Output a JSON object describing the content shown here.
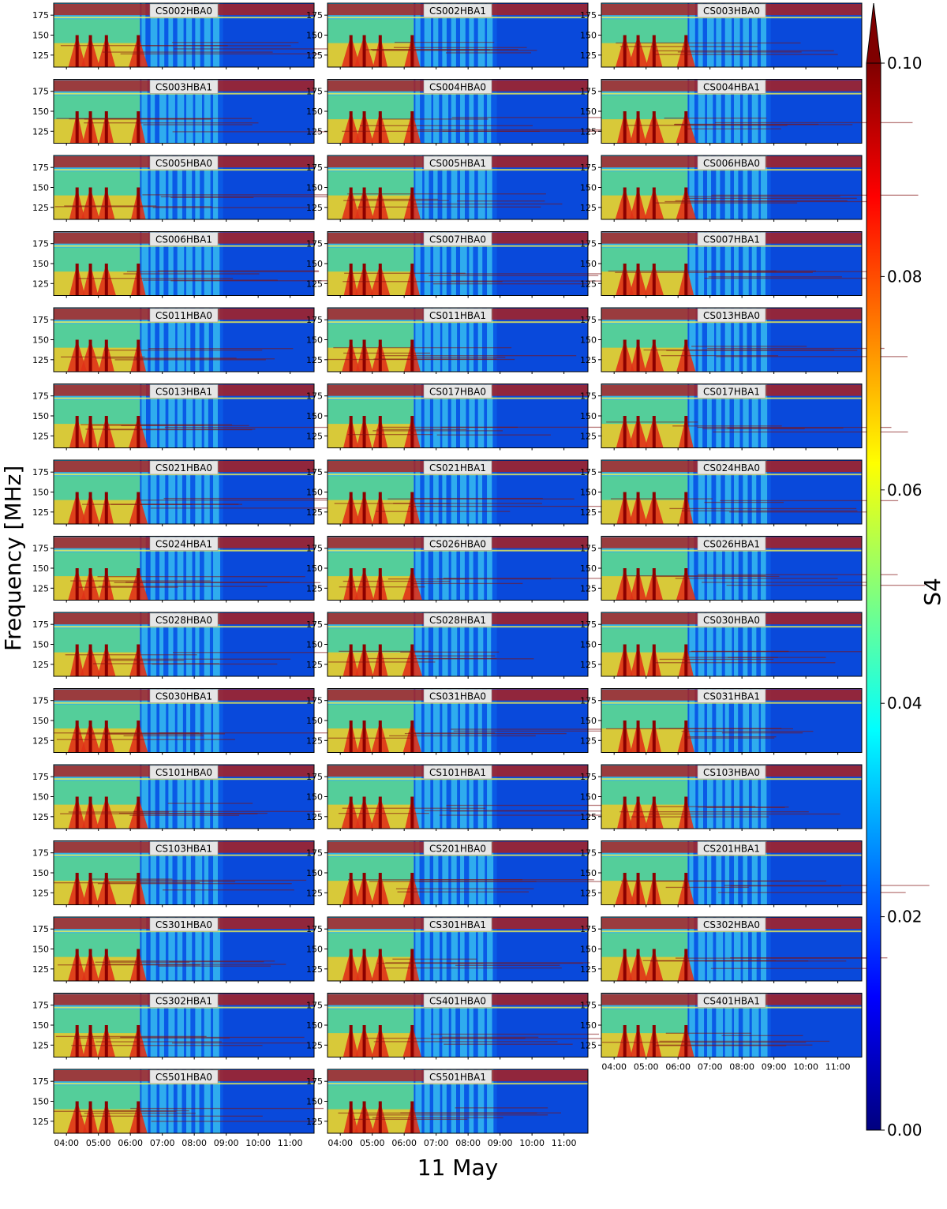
{
  "chart_data": {
    "type": "heatmap",
    "panel_layout": {
      "columns": 3,
      "rows": 15
    },
    "panels": [
      "CS002HBA0",
      "CS002HBA1",
      "CS003HBA0",
      "CS003HBA1",
      "CS004HBA0",
      "CS004HBA1",
      "CS005HBA0",
      "CS005HBA1",
      "CS006HBA0",
      "CS006HBA1",
      "CS007HBA0",
      "CS007HBA1",
      "CS011HBA0",
      "CS011HBA1",
      "CS013HBA0",
      "CS013HBA1",
      "CS017HBA0",
      "CS017HBA1",
      "CS021HBA0",
      "CS021HBA1",
      "CS024HBA0",
      "CS024HBA1",
      "CS026HBA0",
      "CS026HBA1",
      "CS028HBA0",
      "CS028HBA1",
      "CS030HBA0",
      "CS030HBA1",
      "CS031HBA0",
      "CS031HBA1",
      "CS101HBA0",
      "CS101HBA1",
      "CS103HBA0",
      "CS103HBA1",
      "CS201HBA0",
      "CS201HBA1",
      "CS301HBA0",
      "CS301HBA1",
      "CS302HBA0",
      "CS302HBA1",
      "CS401HBA0",
      "CS401HBA1",
      "CS501HBA0",
      "CS501HBA1"
    ],
    "xlabel": "11 May",
    "ylabel": "Frequency [MHz]",
    "x_ticks": [
      "04:00",
      "05:00",
      "06:00",
      "07:00",
      "08:00",
      "09:00",
      "10:00",
      "11:00"
    ],
    "y_ticks": [
      "125",
      "150",
      "175"
    ],
    "y_tick_values": [
      125,
      150,
      175
    ],
    "ylim": [
      110,
      190
    ],
    "xlim_hours": [
      3.6,
      11.75
    ],
    "colorbar": {
      "label": "S4",
      "ticks": [
        "0.00",
        "0.02",
        "0.04",
        "0.06",
        "0.08",
        "0.10"
      ],
      "range": [
        0.0,
        0.1
      ],
      "extend": "max",
      "colormap": "jet",
      "colors": [
        "#00007f",
        "#0000ff",
        "#007fff",
        "#00ffff",
        "#7fff7f",
        "#ffff00",
        "#ff7f00",
        "#ff0000",
        "#7f0000"
      ]
    },
    "features": {
      "strong_scintillation_hours": [
        4.0,
        6.3
      ],
      "spike_times": [
        "04:20",
        "04:45",
        "05:15",
        "06:15"
      ],
      "quiet_after": "07:00",
      "rfi_band_mhz": [
        175,
        185
      ]
    }
  }
}
